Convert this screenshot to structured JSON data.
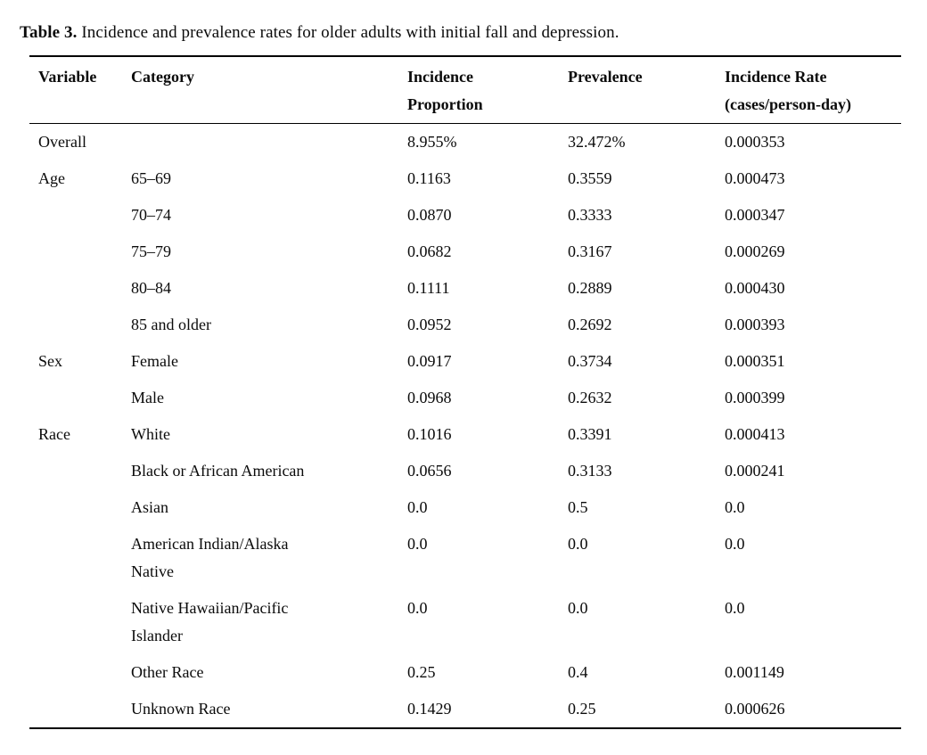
{
  "caption": {
    "label": "Table 3.",
    "text": " Incidence and prevalence rates for older adults with initial fall and depression."
  },
  "table": {
    "columns": [
      "Variable",
      "Category",
      "Incidence\nProportion",
      "Prevalence",
      "Incidence Rate\n(cases/person-day)"
    ],
    "rows": [
      {
        "variable": "Overall",
        "category": "",
        "incidence": "8.955%",
        "prevalence": "32.472%",
        "rate": "0.000353"
      },
      {
        "variable": "Age",
        "category": "65–69",
        "incidence": "0.1163",
        "prevalence": "0.3559",
        "rate": "0.000473"
      },
      {
        "variable": "",
        "category": "70–74",
        "incidence": "0.0870",
        "prevalence": "0.3333",
        "rate": "0.000347"
      },
      {
        "variable": "",
        "category": "75–79",
        "incidence": "0.0682",
        "prevalence": "0.3167",
        "rate": "0.000269"
      },
      {
        "variable": "",
        "category": "80–84",
        "incidence": "0.1111",
        "prevalence": "0.2889",
        "rate": "0.000430"
      },
      {
        "variable": "",
        "category": "85 and older",
        "incidence": "0.0952",
        "prevalence": "0.2692",
        "rate": "0.000393"
      },
      {
        "variable": "Sex",
        "category": "Female",
        "incidence": "0.0917",
        "prevalence": "0.3734",
        "rate": "0.000351"
      },
      {
        "variable": "",
        "category": "Male",
        "incidence": "0.0968",
        "prevalence": "0.2632",
        "rate": "0.000399"
      },
      {
        "variable": "Race",
        "category": "White",
        "incidence": "0.1016",
        "prevalence": "0.3391",
        "rate": "0.000413"
      },
      {
        "variable": "",
        "category": "Black or African American",
        "incidence": "0.0656",
        "prevalence": "0.3133",
        "rate": "0.000241"
      },
      {
        "variable": "",
        "category": "Asian",
        "incidence": "0.0",
        "prevalence": "0.5",
        "rate": "0.0"
      },
      {
        "variable": "",
        "category": "American Indian/Alaska\nNative",
        "incidence": "0.0",
        "prevalence": "0.0",
        "rate": "0.0"
      },
      {
        "variable": "",
        "category": "Native Hawaiian/Pacific\nIslander",
        "incidence": "0.0",
        "prevalence": "0.0",
        "rate": "0.0"
      },
      {
        "variable": "",
        "category": "Other Race",
        "incidence": "0.25",
        "prevalence": "0.4",
        "rate": "0.001149"
      },
      {
        "variable": "",
        "category": "Unknown Race",
        "incidence": "0.1429",
        "prevalence": "0.25",
        "rate": "0.000626"
      }
    ]
  }
}
